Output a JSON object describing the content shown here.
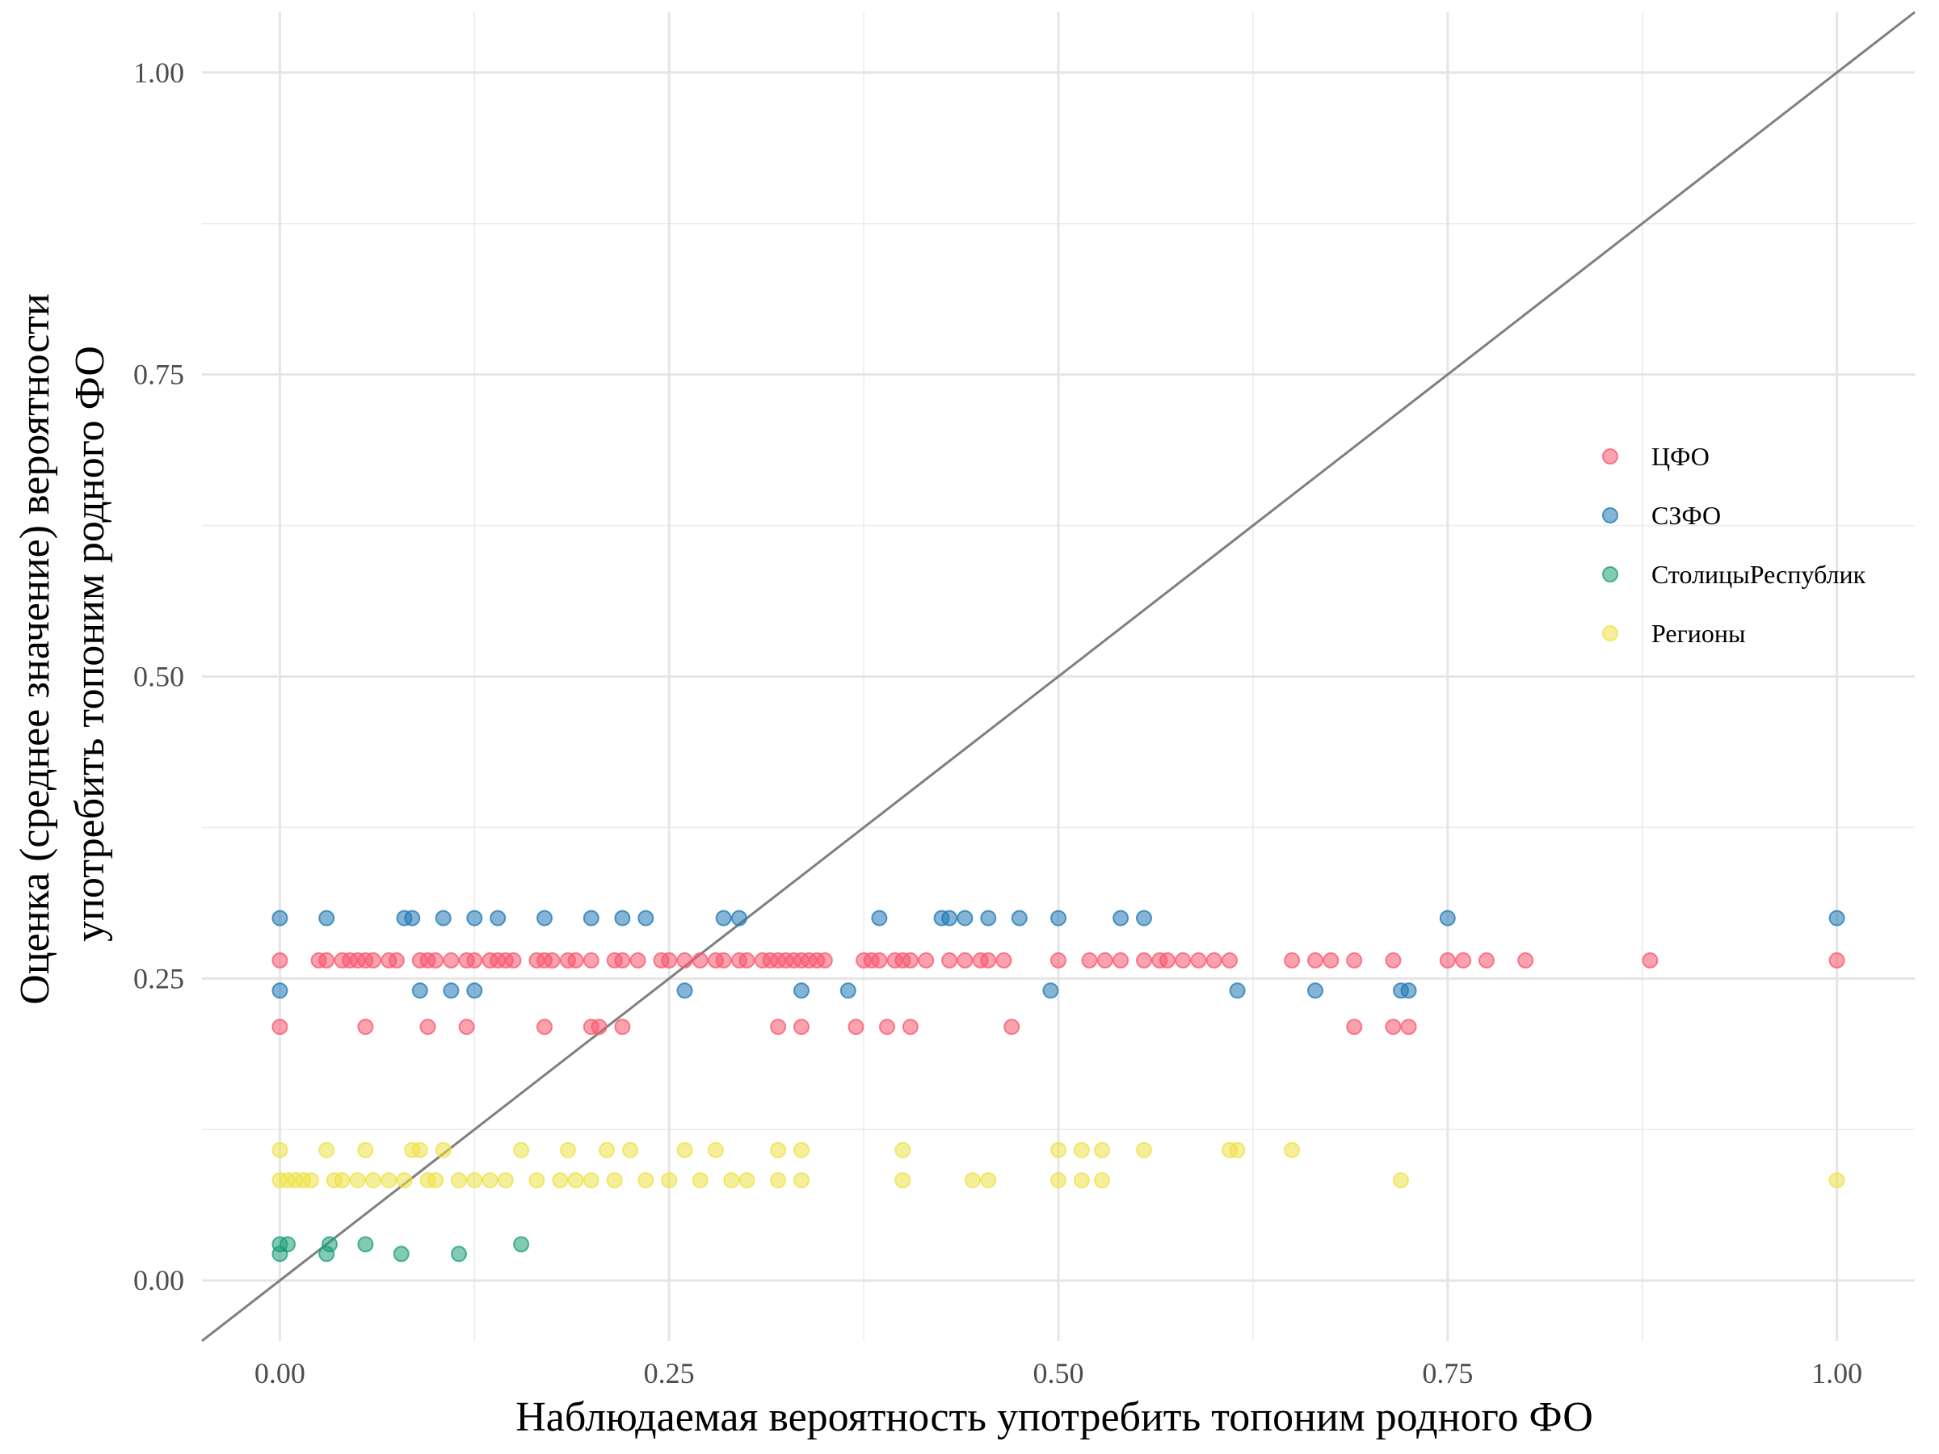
{
  "chart_data": {
    "type": "scatter",
    "xlabel": "Наблюдаемая вероятность употребить топоним родного ФО",
    "ylabel_lines": [
      "Оценка (среднее значение) вероятности",
      "употребить топоним родного ФО"
    ],
    "xlim": [
      -0.05,
      1.05
    ],
    "ylim": [
      -0.05,
      1.05
    ],
    "x_ticks": [
      0.0,
      0.25,
      0.5,
      0.75,
      1.0
    ],
    "x_tick_labels": [
      "0.00",
      "0.25",
      "0.50",
      "0.75",
      "1.00"
    ],
    "y_ticks": [
      0.0,
      0.25,
      0.5,
      0.75,
      1.0
    ],
    "y_tick_labels": [
      "0.00",
      "0.25",
      "0.50",
      "0.75",
      "1.00"
    ],
    "grid": true,
    "reference_line": {
      "slope": 1,
      "intercept": 0,
      "color": "#7f7f7f"
    },
    "legend": {
      "placement": "right"
    },
    "series": [
      {
        "name": "ЦФО",
        "color": "#f8566e",
        "points": [
          [
            0,
            0.265
          ],
          [
            0,
            0.21
          ],
          [
            0.025,
            0.265
          ],
          [
            0.03,
            0.265
          ],
          [
            0.04,
            0.265
          ],
          [
            0.045,
            0.265
          ],
          [
            0.05,
            0.265
          ],
          [
            0.055,
            0.265
          ],
          [
            0.06,
            0.265
          ],
          [
            0.07,
            0.265
          ],
          [
            0.075,
            0.265
          ],
          [
            0.055,
            0.21
          ],
          [
            0.09,
            0.265
          ],
          [
            0.095,
            0.265
          ],
          [
            0.1,
            0.265
          ],
          [
            0.095,
            0.21
          ],
          [
            0.11,
            0.265
          ],
          [
            0.12,
            0.265
          ],
          [
            0.125,
            0.265
          ],
          [
            0.12,
            0.21
          ],
          [
            0.135,
            0.265
          ],
          [
            0.14,
            0.265
          ],
          [
            0.145,
            0.265
          ],
          [
            0.15,
            0.265
          ],
          [
            0.165,
            0.265
          ],
          [
            0.17,
            0.265
          ],
          [
            0.175,
            0.265
          ],
          [
            0.185,
            0.265
          ],
          [
            0.19,
            0.265
          ],
          [
            0.2,
            0.265
          ],
          [
            0.17,
            0.21
          ],
          [
            0.2,
            0.21
          ],
          [
            0.205,
            0.21
          ],
          [
            0.215,
            0.265
          ],
          [
            0.22,
            0.265
          ],
          [
            0.23,
            0.265
          ],
          [
            0.245,
            0.265
          ],
          [
            0.25,
            0.265
          ],
          [
            0.26,
            0.265
          ],
          [
            0.27,
            0.265
          ],
          [
            0.28,
            0.265
          ],
          [
            0.285,
            0.265
          ],
          [
            0.295,
            0.265
          ],
          [
            0.3,
            0.265
          ],
          [
            0.31,
            0.265
          ],
          [
            0.315,
            0.265
          ],
          [
            0.32,
            0.265
          ],
          [
            0.325,
            0.265
          ],
          [
            0.33,
            0.265
          ],
          [
            0.335,
            0.265
          ],
          [
            0.34,
            0.265
          ],
          [
            0.345,
            0.265
          ],
          [
            0.35,
            0.265
          ],
          [
            0.375,
            0.265
          ],
          [
            0.38,
            0.265
          ],
          [
            0.385,
            0.265
          ],
          [
            0.395,
            0.265
          ],
          [
            0.4,
            0.265
          ],
          [
            0.405,
            0.265
          ],
          [
            0.415,
            0.265
          ],
          [
            0.43,
            0.265
          ],
          [
            0.44,
            0.265
          ],
          [
            0.45,
            0.265
          ],
          [
            0.455,
            0.265
          ],
          [
            0.465,
            0.265
          ],
          [
            0.22,
            0.21
          ],
          [
            0.32,
            0.21
          ],
          [
            0.335,
            0.21
          ],
          [
            0.37,
            0.21
          ],
          [
            0.39,
            0.21
          ],
          [
            0.405,
            0.21
          ],
          [
            0.47,
            0.21
          ],
          [
            0.5,
            0.265
          ],
          [
            0.52,
            0.265
          ],
          [
            0.53,
            0.265
          ],
          [
            0.54,
            0.265
          ],
          [
            0.555,
            0.265
          ],
          [
            0.565,
            0.265
          ],
          [
            0.57,
            0.265
          ],
          [
            0.58,
            0.265
          ],
          [
            0.59,
            0.265
          ],
          [
            0.6,
            0.265
          ],
          [
            0.61,
            0.265
          ],
          [
            0.65,
            0.265
          ],
          [
            0.665,
            0.265
          ],
          [
            0.675,
            0.265
          ],
          [
            0.69,
            0.265
          ],
          [
            0.715,
            0.265
          ],
          [
            0.69,
            0.21
          ],
          [
            0.715,
            0.21
          ],
          [
            0.725,
            0.21
          ],
          [
            0.75,
            0.265
          ],
          [
            0.76,
            0.265
          ],
          [
            0.775,
            0.265
          ],
          [
            0.8,
            0.265
          ],
          [
            0.88,
            0.265
          ],
          [
            1.0,
            0.265
          ]
        ]
      },
      {
        "name": "СЗФО",
        "color": "#1f78b4",
        "points": [
          [
            0,
            0.3
          ],
          [
            0,
            0.24
          ],
          [
            0.03,
            0.3
          ],
          [
            0.08,
            0.3
          ],
          [
            0.085,
            0.3
          ],
          [
            0.09,
            0.24
          ],
          [
            0.105,
            0.3
          ],
          [
            0.11,
            0.24
          ],
          [
            0.125,
            0.3
          ],
          [
            0.125,
            0.24
          ],
          [
            0.14,
            0.3
          ],
          [
            0.17,
            0.3
          ],
          [
            0.2,
            0.3
          ],
          [
            0.22,
            0.3
          ],
          [
            0.235,
            0.3
          ],
          [
            0.26,
            0.24
          ],
          [
            0.285,
            0.3
          ],
          [
            0.295,
            0.3
          ],
          [
            0.335,
            0.24
          ],
          [
            0.365,
            0.24
          ],
          [
            0.385,
            0.3
          ],
          [
            0.425,
            0.3
          ],
          [
            0.43,
            0.3
          ],
          [
            0.44,
            0.3
          ],
          [
            0.455,
            0.3
          ],
          [
            0.475,
            0.3
          ],
          [
            0.495,
            0.24
          ],
          [
            0.5,
            0.3
          ],
          [
            0.54,
            0.3
          ],
          [
            0.555,
            0.3
          ],
          [
            0.615,
            0.24
          ],
          [
            0.665,
            0.24
          ],
          [
            0.72,
            0.24
          ],
          [
            0.725,
            0.24
          ],
          [
            0.75,
            0.3
          ],
          [
            1.0,
            0.3
          ]
        ]
      },
      {
        "name": "СтолицыРеспублик",
        "color": "#1a9e77",
        "points": [
          [
            0,
            0.03
          ],
          [
            0,
            0.022
          ],
          [
            0.005,
            0.03
          ],
          [
            0.03,
            0.022
          ],
          [
            0.032,
            0.03
          ],
          [
            0.055,
            0.03
          ],
          [
            0.078,
            0.022
          ],
          [
            0.115,
            0.022
          ],
          [
            0.155,
            0.03
          ]
        ]
      },
      {
        "name": "Регионы",
        "color": "#ede147",
        "points": [
          [
            0,
            0.108
          ],
          [
            0,
            0.083
          ],
          [
            0.005,
            0.083
          ],
          [
            0.01,
            0.083
          ],
          [
            0.015,
            0.083
          ],
          [
            0.02,
            0.083
          ],
          [
            0.03,
            0.108
          ],
          [
            0.035,
            0.083
          ],
          [
            0.04,
            0.083
          ],
          [
            0.05,
            0.083
          ],
          [
            0.055,
            0.108
          ],
          [
            0.06,
            0.083
          ],
          [
            0.07,
            0.083
          ],
          [
            0.08,
            0.083
          ],
          [
            0.085,
            0.108
          ],
          [
            0.09,
            0.108
          ],
          [
            0.095,
            0.083
          ],
          [
            0.1,
            0.083
          ],
          [
            0.105,
            0.108
          ],
          [
            0.115,
            0.083
          ],
          [
            0.125,
            0.083
          ],
          [
            0.135,
            0.083
          ],
          [
            0.145,
            0.083
          ],
          [
            0.155,
            0.108
          ],
          [
            0.165,
            0.083
          ],
          [
            0.18,
            0.083
          ],
          [
            0.185,
            0.108
          ],
          [
            0.19,
            0.083
          ],
          [
            0.2,
            0.083
          ],
          [
            0.21,
            0.108
          ],
          [
            0.215,
            0.083
          ],
          [
            0.225,
            0.108
          ],
          [
            0.235,
            0.083
          ],
          [
            0.25,
            0.083
          ],
          [
            0.26,
            0.108
          ],
          [
            0.27,
            0.083
          ],
          [
            0.28,
            0.108
          ],
          [
            0.29,
            0.083
          ],
          [
            0.3,
            0.083
          ],
          [
            0.32,
            0.108
          ],
          [
            0.32,
            0.083
          ],
          [
            0.335,
            0.108
          ],
          [
            0.335,
            0.083
          ],
          [
            0.4,
            0.108
          ],
          [
            0.4,
            0.083
          ],
          [
            0.445,
            0.083
          ],
          [
            0.455,
            0.083
          ],
          [
            0.5,
            0.108
          ],
          [
            0.5,
            0.083
          ],
          [
            0.515,
            0.108
          ],
          [
            0.515,
            0.083
          ],
          [
            0.528,
            0.108
          ],
          [
            0.528,
            0.083
          ],
          [
            0.555,
            0.108
          ],
          [
            0.61,
            0.108
          ],
          [
            0.615,
            0.108
          ],
          [
            0.65,
            0.108
          ],
          [
            0.72,
            0.083
          ],
          [
            1.0,
            0.083
          ]
        ]
      }
    ]
  }
}
